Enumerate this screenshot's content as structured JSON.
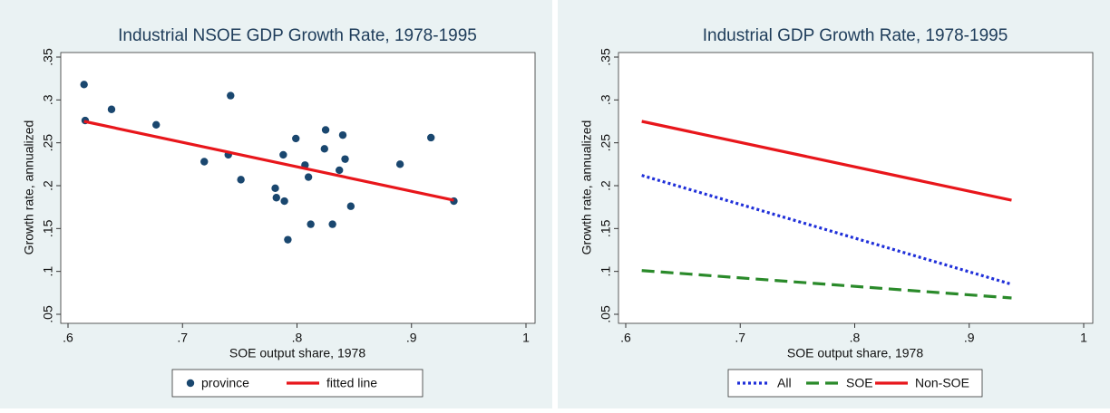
{
  "chart_data": [
    {
      "type": "scatter",
      "title": "Industrial NSOE GDP Growth Rate, 1978-1995",
      "x_label": "SOE output share, 1978",
      "y_label": "Growth rate, annualized",
      "xlim": [
        0.6,
        1
      ],
      "ylim": [
        0.05,
        0.35
      ],
      "xticks": [
        {
          "value": 0.6,
          "label": ".6"
        },
        {
          "value": 0.7,
          "label": ".7"
        },
        {
          "value": 0.8,
          "label": ".8"
        },
        {
          "value": 0.9,
          "label": ".9"
        },
        1
      ],
      "yticks": [
        {
          "value": 0.05,
          "label": ".05"
        },
        {
          "value": 0.1,
          "label": ".1"
        },
        {
          "value": 0.15,
          "label": ".15"
        },
        {
          "value": 0.2,
          "label": ".2"
        },
        {
          "value": 0.25,
          "label": ".25"
        },
        {
          "value": 0.3,
          "label": ".3"
        },
        {
          "value": 0.35,
          "label": ".35"
        }
      ],
      "series": [
        {
          "name": "province",
          "kind": "markers",
          "color": "#1a476f",
          "x": [
            0.614,
            0.615,
            0.638,
            0.677,
            0.719,
            0.742,
            0.74,
            0.751,
            0.781,
            0.782,
            0.788,
            0.789,
            0.792,
            0.799,
            0.807,
            0.81,
            0.812,
            0.825,
            0.824,
            0.831,
            0.837,
            0.84,
            0.842,
            0.847,
            0.89,
            0.917,
            0.937
          ],
          "values": [
            0.318,
            0.276,
            0.289,
            0.271,
            0.228,
            0.305,
            0.236,
            0.207,
            0.197,
            0.186,
            0.236,
            0.182,
            0.137,
            0.255,
            0.224,
            0.21,
            0.155,
            0.265,
            0.243,
            0.155,
            0.218,
            0.259,
            0.231,
            0.176,
            0.225,
            0.256,
            0.182
          ]
        },
        {
          "name": "fitted line",
          "kind": "line",
          "dash": "solid",
          "color": "#e8161b",
          "x": [
            0.614,
            0.937
          ],
          "values": [
            0.275,
            0.183
          ]
        }
      ]
    },
    {
      "type": "line",
      "title": "Industrial GDP Growth Rate, 1978-1995",
      "x_label": "SOE output share, 1978",
      "y_label": "Growth rate, annualized",
      "xlim": [
        0.6,
        1
      ],
      "ylim": [
        0.05,
        0.35
      ],
      "xticks": [
        {
          "value": 0.6,
          "label": ".6"
        },
        {
          "value": 0.7,
          "label": ".7"
        },
        {
          "value": 0.8,
          "label": ".8"
        },
        {
          "value": 0.9,
          "label": ".9"
        },
        1
      ],
      "yticks": [
        {
          "value": 0.05,
          "label": ".05"
        },
        {
          "value": 0.1,
          "label": ".1"
        },
        {
          "value": 0.15,
          "label": ".15"
        },
        {
          "value": 0.2,
          "label": ".2"
        },
        {
          "value": 0.25,
          "label": ".25"
        },
        {
          "value": 0.3,
          "label": ".3"
        },
        {
          "value": 0.35,
          "label": ".35"
        }
      ],
      "series": [
        {
          "name": "All",
          "kind": "line",
          "dash": "dotted",
          "color": "#1f2fd9",
          "x": [
            0.614,
            0.937
          ],
          "values": [
            0.212,
            0.085
          ]
        },
        {
          "name": "SOE",
          "kind": "line",
          "dash": "dashed",
          "color": "#2a8a2a",
          "x": [
            0.614,
            0.937
          ],
          "values": [
            0.101,
            0.069
          ]
        },
        {
          "name": "Non-SOE",
          "kind": "line",
          "dash": "solid",
          "color": "#e8161b",
          "x": [
            0.614,
            0.937
          ],
          "values": [
            0.275,
            0.183
          ]
        }
      ]
    }
  ]
}
